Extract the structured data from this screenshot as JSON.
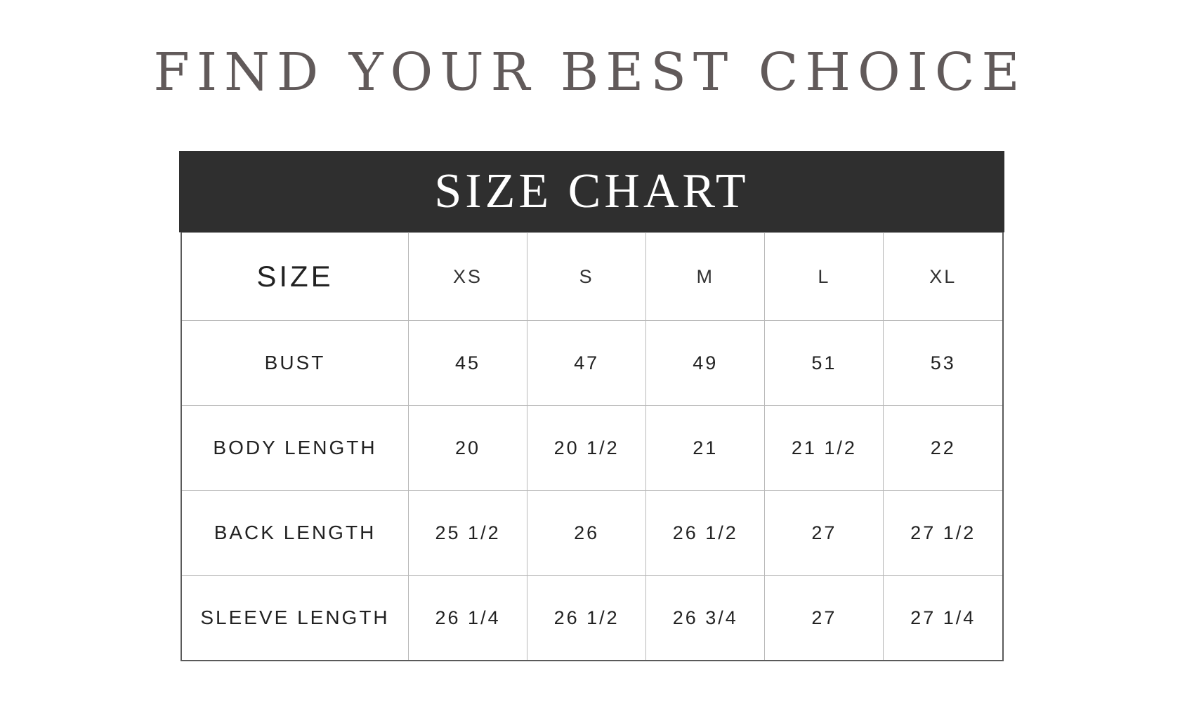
{
  "title": "FIND YOUR BEST CHOICE",
  "chart_header": "SIZE CHART",
  "table": {
    "corner": "SIZE",
    "sizes": [
      "XS",
      "S",
      "M",
      "L",
      "XL"
    ],
    "rows": [
      {
        "label": "BUST",
        "values": [
          "45",
          "47",
          "49",
          "51",
          "53"
        ]
      },
      {
        "label": "BODY LENGTH",
        "values": [
          "20",
          "20 1/2",
          "21",
          "21 1/2",
          "22"
        ]
      },
      {
        "label": "BACK LENGTH",
        "values": [
          "25 1/2",
          "26",
          "26 1/2",
          "27",
          "27 1/2"
        ]
      },
      {
        "label": "SLEEVE LENGTH",
        "values": [
          "26 1/4",
          "26 1/2",
          "26 3/4",
          "27",
          "27 1/4"
        ]
      }
    ]
  }
}
